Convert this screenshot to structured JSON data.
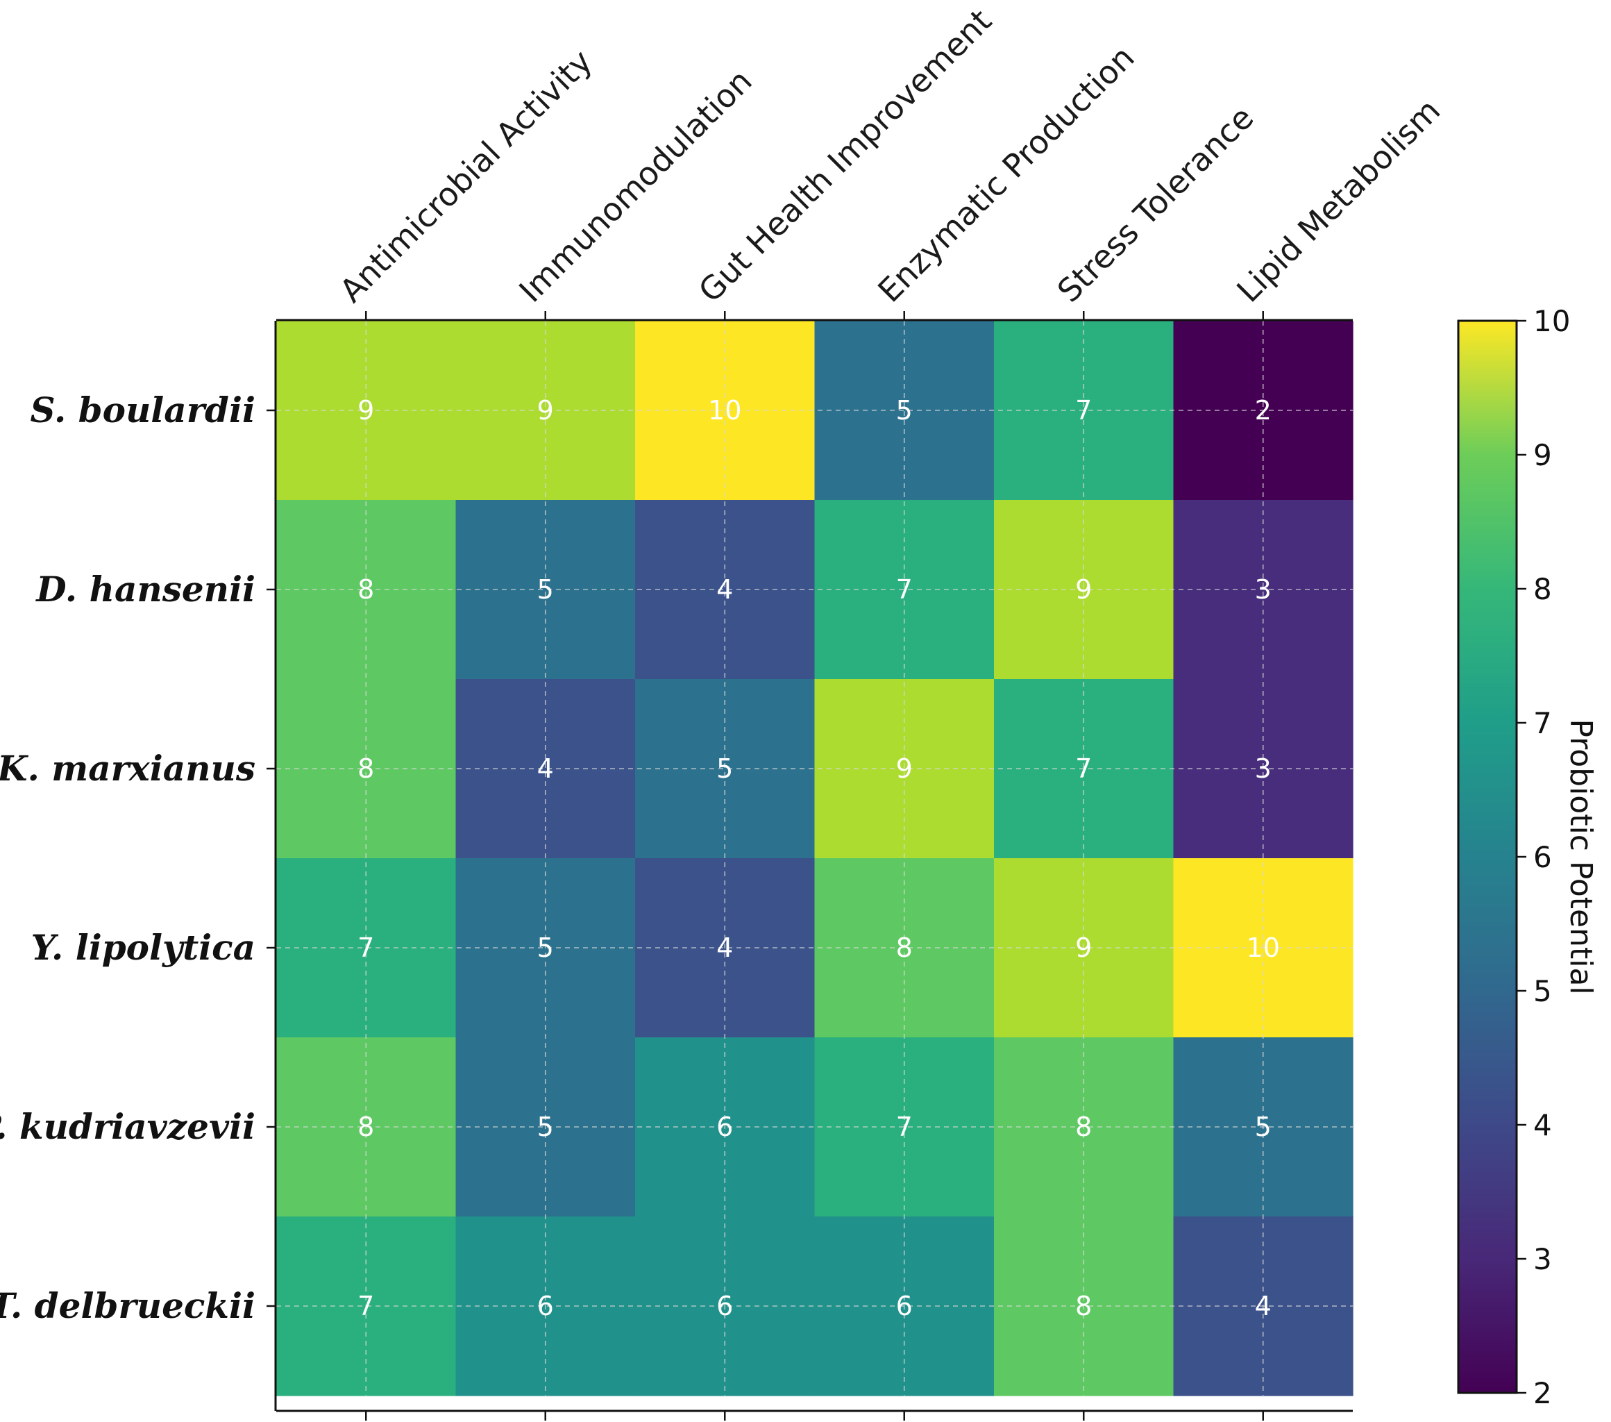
{
  "chart_data": {
    "type": "heatmap",
    "title": "",
    "columns": [
      "Antimicrobial Activity",
      "Immunomodulation",
      "Gut Health Improvement",
      "Enzymatic Production",
      "Stress Tolerance",
      "Lipid Metabolism"
    ],
    "rows": [
      "S. boulardii",
      "D. hansenii",
      "K. marxianus",
      "Y. lipolytica",
      "P. kudriavzevii",
      "T. delbrueckii"
    ],
    "values": [
      [
        9,
        9,
        10,
        5,
        7,
        2
      ],
      [
        8,
        5,
        4,
        7,
        9,
        3
      ],
      [
        8,
        4,
        5,
        9,
        7,
        3
      ],
      [
        7,
        5,
        4,
        8,
        9,
        10
      ],
      [
        8,
        5,
        6,
        7,
        8,
        5
      ],
      [
        7,
        6,
        6,
        6,
        8,
        4
      ]
    ],
    "colorbar": {
      "label": "Probiotic Potential",
      "min": 2,
      "max": 10,
      "ticks": [
        2,
        3,
        4,
        5,
        6,
        7,
        8,
        9,
        10
      ],
      "colormap": "viridis"
    },
    "grid": true
  }
}
